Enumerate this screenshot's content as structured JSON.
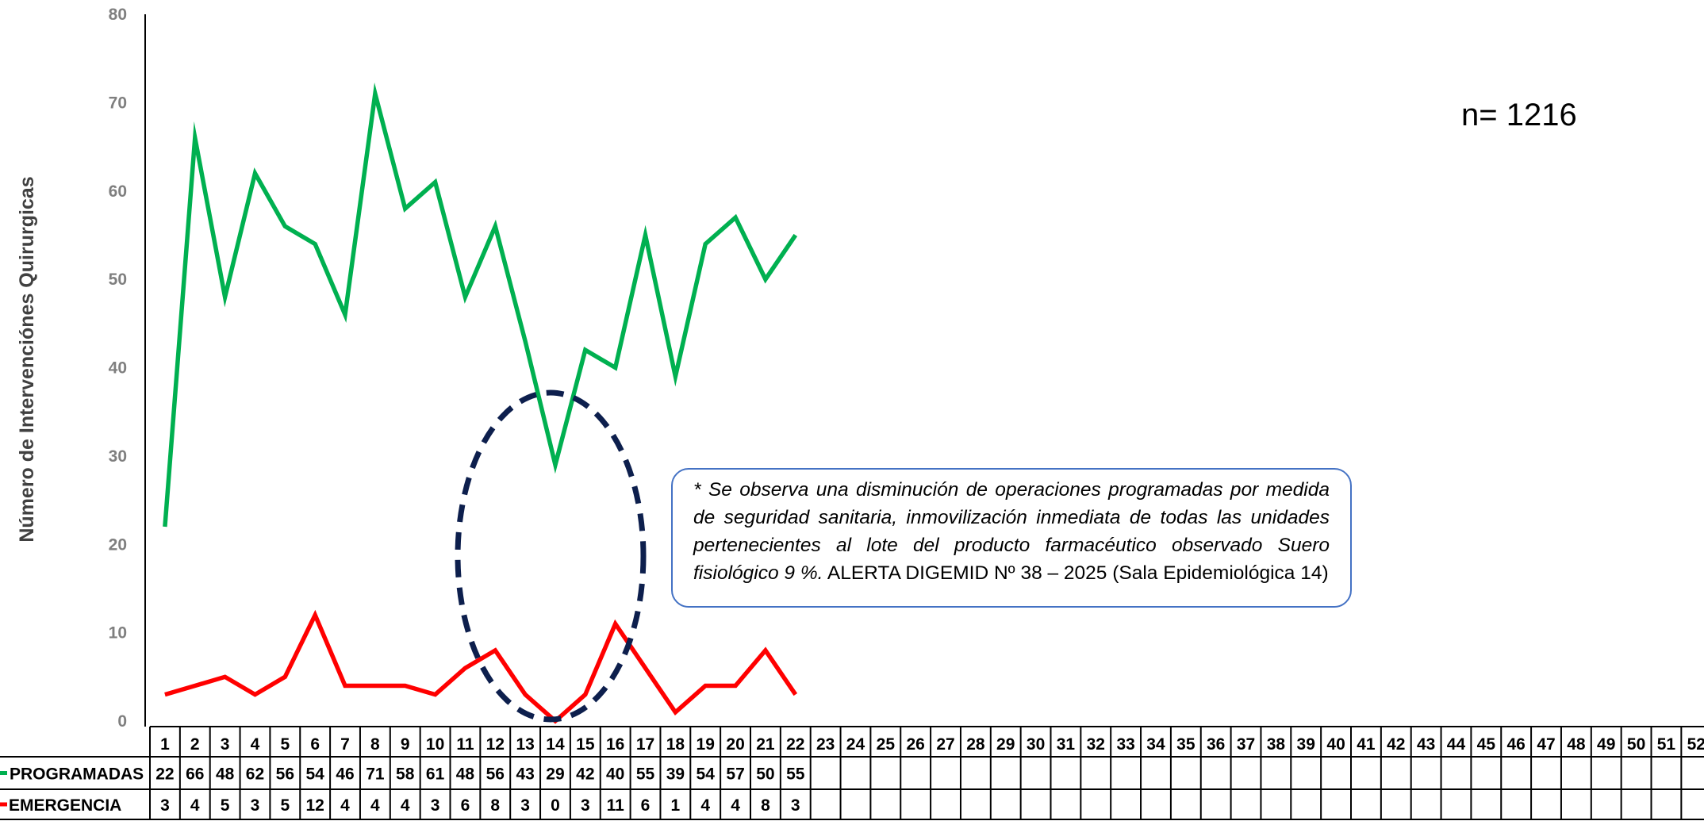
{
  "chart_data": {
    "type": "line",
    "title": "",
    "xlabel": "",
    "ylabel": "Número de Intervenciónes Quirurgicas",
    "ylim": [
      0,
      80
    ],
    "yticks": [
      0,
      10,
      20,
      30,
      40,
      50,
      60,
      70,
      80
    ],
    "grid": false,
    "weeks": [
      1,
      2,
      3,
      4,
      5,
      6,
      7,
      8,
      9,
      10,
      11,
      12,
      13,
      14,
      15,
      16,
      17,
      18,
      19,
      20,
      21,
      22,
      23,
      24,
      25,
      26,
      27,
      28,
      29,
      30,
      31,
      32,
      33,
      34,
      35,
      36,
      37,
      38,
      39,
      40,
      41,
      42,
      43,
      44,
      45,
      46,
      47,
      48,
      49,
      50,
      51,
      52
    ],
    "series": [
      {
        "name": "PROGRAMADAS",
        "color": "#00b050",
        "values": [
          22,
          66,
          48,
          62,
          56,
          54,
          46,
          71,
          58,
          61,
          48,
          56,
          43,
          29,
          42,
          40,
          55,
          39,
          54,
          57,
          50,
          55
        ]
      },
      {
        "name": "EMERGENCIA",
        "color": "#ff0000",
        "values": [
          3,
          4,
          5,
          3,
          5,
          12,
          4,
          4,
          4,
          3,
          6,
          8,
          3,
          0,
          3,
          11,
          6,
          1,
          4,
          4,
          8,
          3
        ]
      }
    ],
    "legend": "data-table-rows",
    "highlight_color": "#0d1f4d"
  },
  "annotations": {
    "n_label": "n= 1216",
    "note_italic": "* Se observa una disminución de operaciones programadas por medida de seguridad sanitaria, inmovilización inmediata de todas las unidades pertenecientes al lote del producto farmacéutico observado Suero fisiológico 9 %.",
    "note_plain": " ALERTA DIGEMID Nº 38 – 2025 (Sala Epidemiológica 14)"
  }
}
